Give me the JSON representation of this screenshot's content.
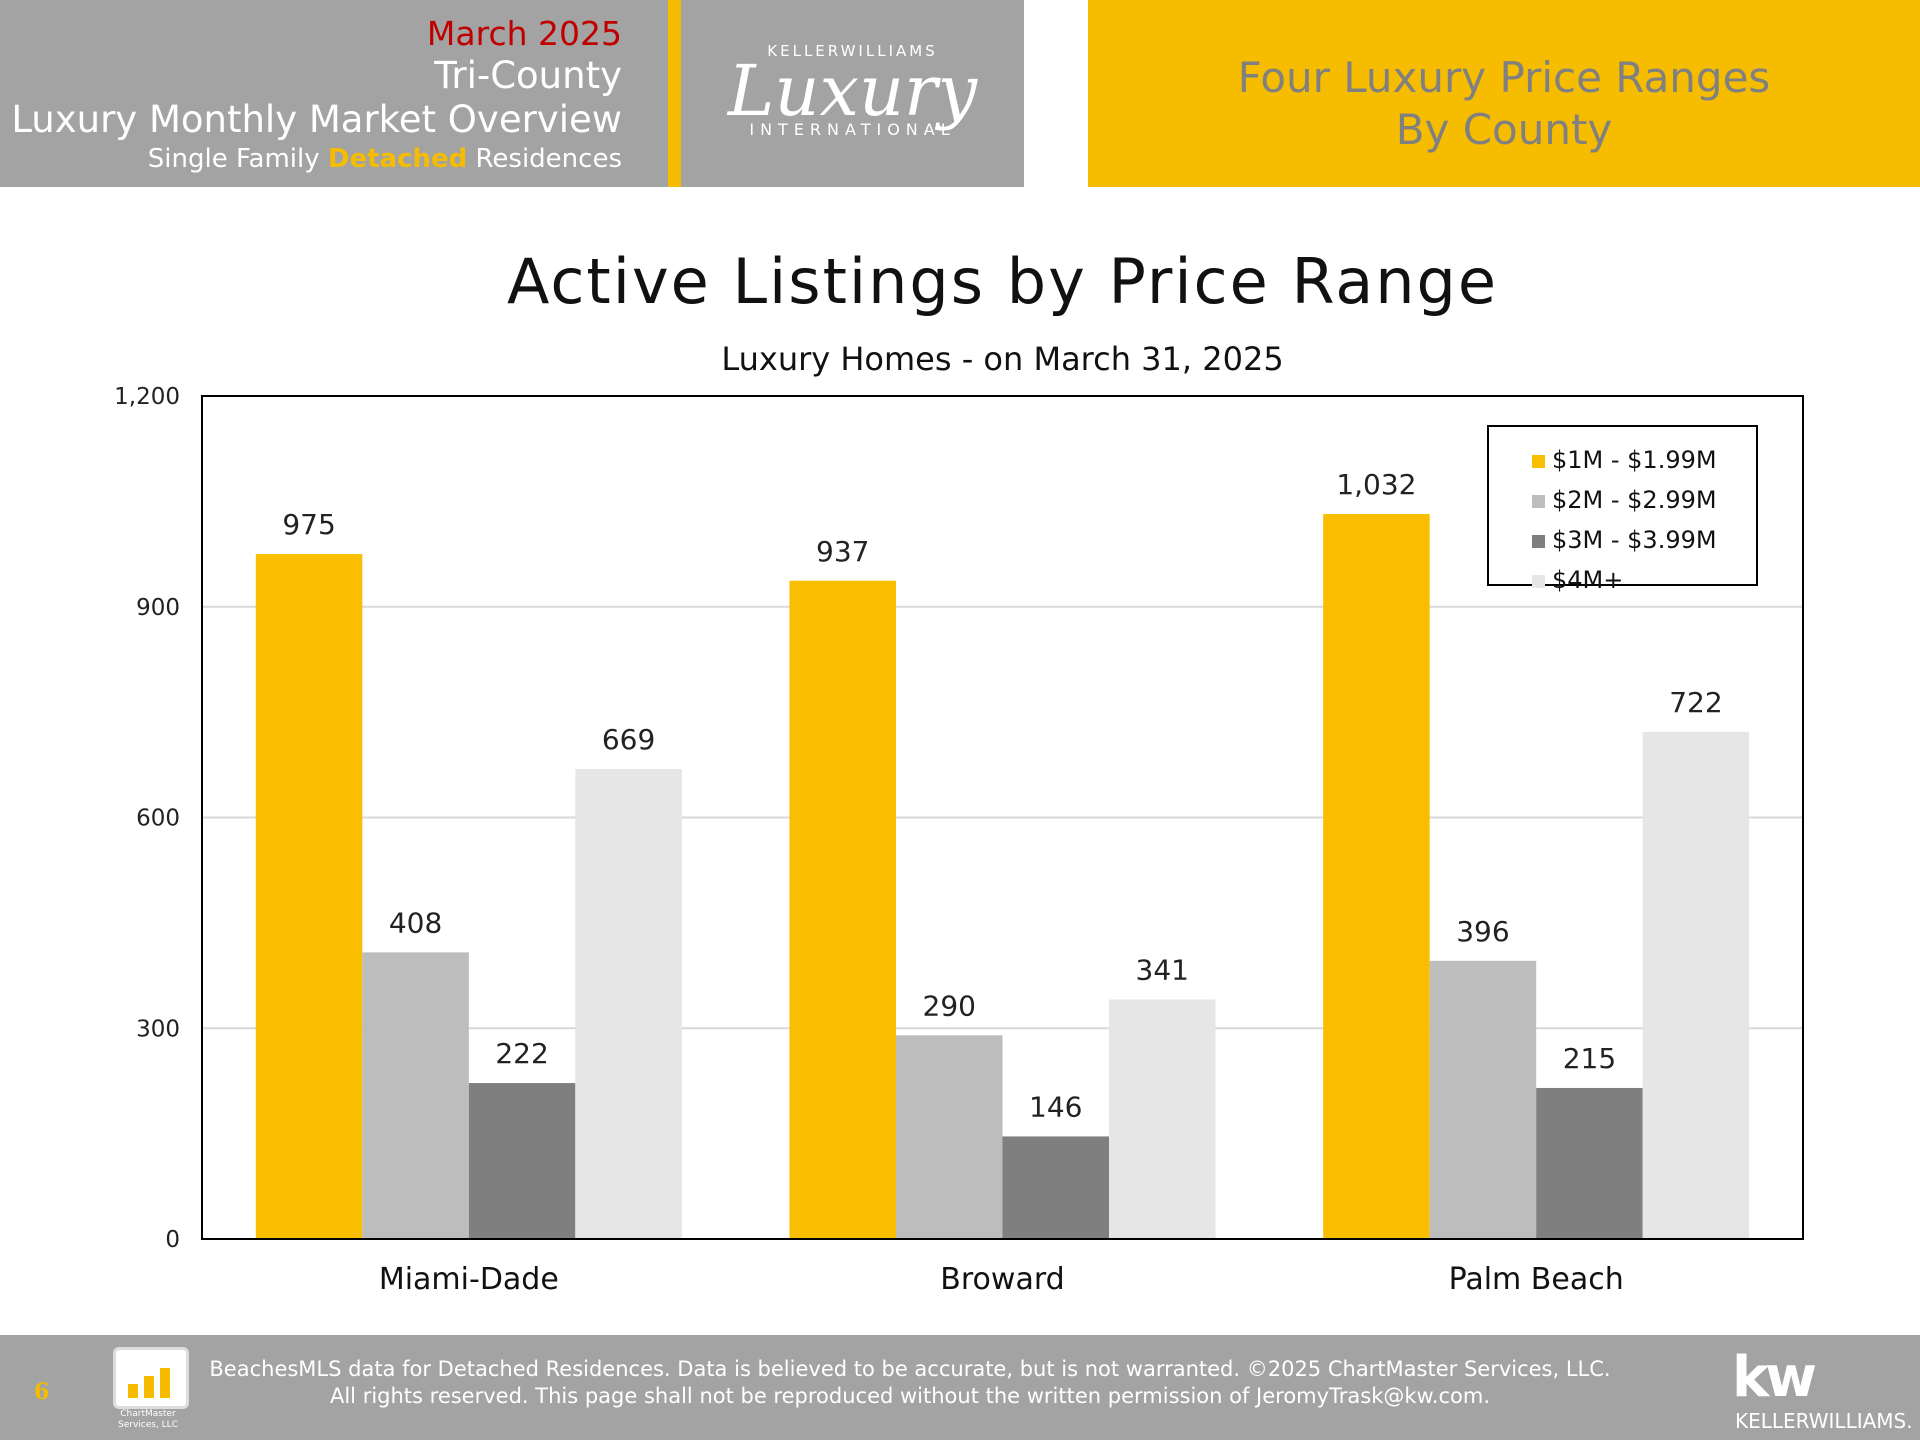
{
  "header": {
    "month": "March 2025",
    "region": "Tri-County",
    "report_title": "Luxury Monthly Market Overview",
    "subtitle_prefix": "Single Family ",
    "subtitle_accent": "Detached",
    "subtitle_suffix": " Residences",
    "logo_top": "KELLERWILLIAMS",
    "logo_script": "Luxury",
    "logo_bottom": "INTERNATIONAL",
    "right_line1": "Four Luxury Price Ranges",
    "right_line2": "By County"
  },
  "colors": {
    "accent_yellow": "#f5bc00",
    "header_gray": "#a3a3a3",
    "month_red": "#c00000"
  },
  "chart_data": {
    "type": "bar",
    "title": "Active Listings by Price Range",
    "subtitle": "Luxury Homes - on March 31, 2025",
    "categories": [
      "Miami-Dade",
      "Broward",
      "Palm Beach"
    ],
    "series": [
      {
        "name": "$1M - $1.99M",
        "color": "#f9be00",
        "values": [
          975,
          937,
          1032
        ],
        "labels": [
          "975",
          "937",
          "1,032"
        ]
      },
      {
        "name": "$2M - $2.99M",
        "color": "#bdbdbd",
        "values": [
          408,
          290,
          396
        ],
        "labels": [
          "408",
          "290",
          "396"
        ]
      },
      {
        "name": "$3M - $3.99M",
        "color": "#7f7f7f",
        "values": [
          222,
          146,
          215
        ],
        "labels": [
          "222",
          "146",
          "215"
        ]
      },
      {
        "name": "$4M+",
        "color": "#e6e6e6",
        "values": [
          669,
          341,
          722
        ],
        "labels": [
          "669",
          "341",
          "722"
        ]
      }
    ],
    "y_ticks": [
      0,
      300,
      600,
      900,
      1200
    ],
    "y_tick_labels": [
      "0",
      "300",
      "600",
      "900",
      "1,200"
    ],
    "ylim": [
      0,
      1200
    ],
    "grid": true,
    "legend_position": "top-right"
  },
  "footer": {
    "page_number": "6",
    "chartmaster_logo_line1": "ChartMaster",
    "chartmaster_logo_line2": "Services, LLC",
    "disclaimer_line1": "BeachesMLS data for Detached Residences.  Data is believed to be accurate, but is not warranted.   ©2025  ChartMaster Services, LLC.",
    "disclaimer_line2": "All rights reserved. This page shall not be reproduced without the written permission of JeromyTrask@kw.com.",
    "kw_logo": "kw",
    "kw_name": "KELLERWILLIAMS."
  }
}
